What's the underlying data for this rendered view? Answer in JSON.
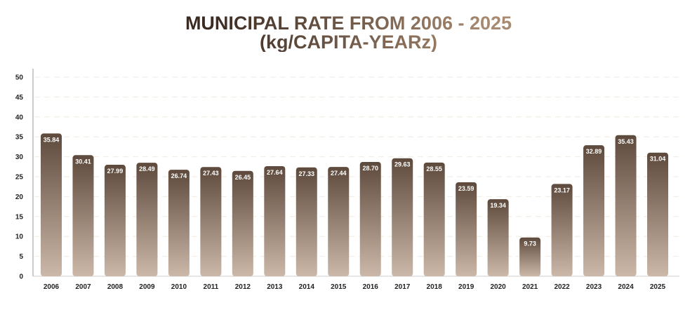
{
  "chart_data": {
    "type": "bar",
    "title": "MUNICIPAL RATE FROM 2006 - 2025",
    "subtitle": "(kg/CAPITA-YEARz)",
    "xlabel": "",
    "ylabel": "",
    "ylim": [
      0,
      50
    ],
    "yticks": [
      0,
      5,
      10,
      15,
      20,
      25,
      30,
      35,
      40,
      45,
      50
    ],
    "grid": true,
    "categories": [
      "2006",
      "2007",
      "2008",
      "2009",
      "2010",
      "2011",
      "2012",
      "2013",
      "2014",
      "2015",
      "2016",
      "2017",
      "2018",
      "2019",
      "2020",
      "2021",
      "2022",
      "2023",
      "2024",
      "2025"
    ],
    "values": [
      35.84,
      30.41,
      27.99,
      28.49,
      26.74,
      27.43,
      26.45,
      27.64,
      27.33,
      27.44,
      28.7,
      29.63,
      28.55,
      23.59,
      19.34,
      9.73,
      23.17,
      32.89,
      35.43,
      31.04
    ],
    "value_labels": [
      "35.84",
      "30.41",
      "27.99",
      "28.49",
      "26.74",
      "27.43",
      "26.45",
      "27.64",
      "27.33",
      "27.44",
      "28.70",
      "29.63",
      "28.55",
      "23.59",
      "19.34",
      "9.73",
      "23.17",
      "32.89",
      "35.43",
      "31.04"
    ],
    "colors": {
      "bar_top": "#5e4a3c",
      "bar_bottom": "#cbb8a9",
      "grid": "#f1ebe0",
      "title_start": "#3a2a22",
      "title_end": "#a88a70"
    }
  }
}
